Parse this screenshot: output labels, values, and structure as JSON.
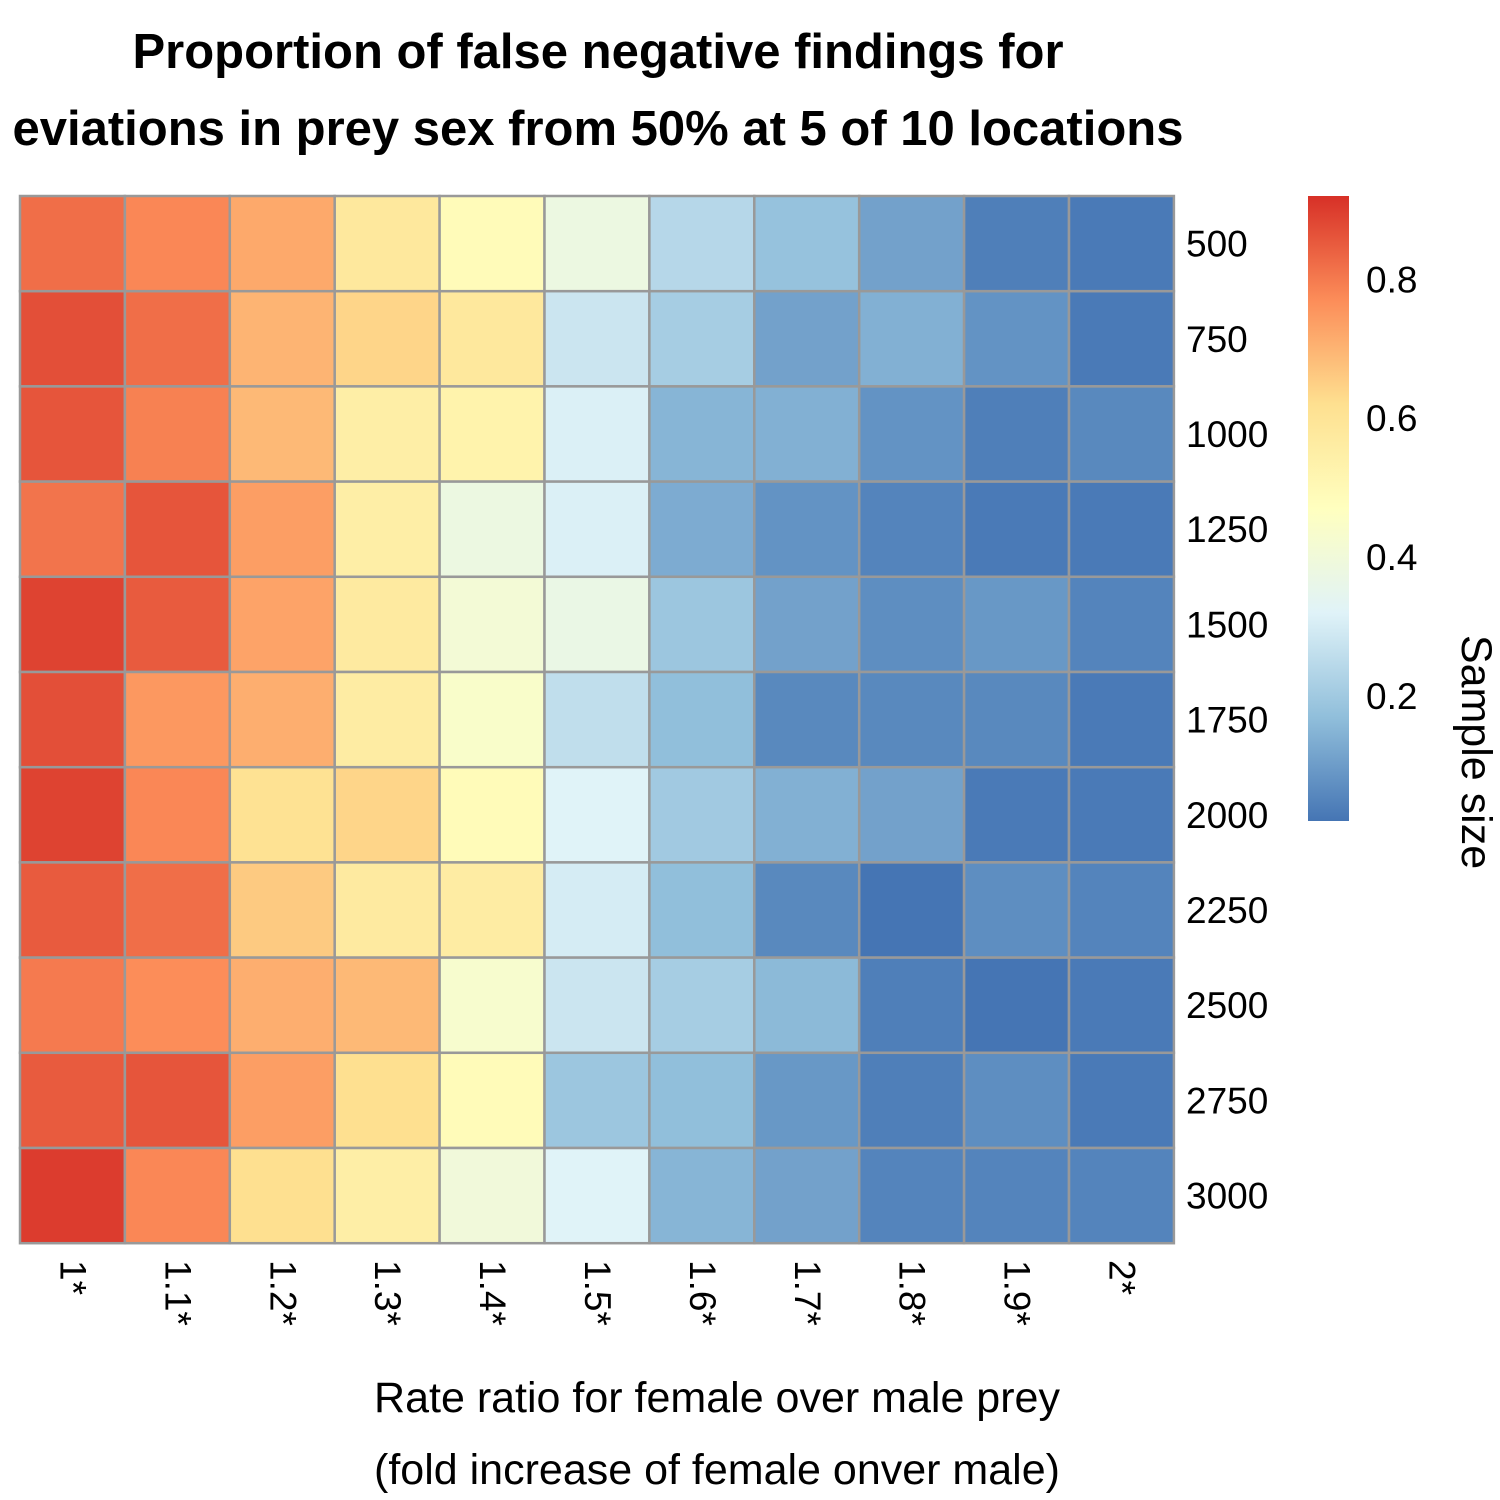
{
  "chart_data": {
    "type": "heatmap",
    "title_lines": [
      "Proportion of false negative findings for",
      "eviations in prey sex from 50% at 5 of 10 locations"
    ],
    "xlabel_lines": [
      "Rate ratio for female over male prey",
      "(fold increase of female onver male)"
    ],
    "colorbar_label": "Sample size",
    "x_categories": [
      "1*",
      "1.1*",
      "1.2*",
      "1.3*",
      "1.4*",
      "1.5*",
      "1.6*",
      "1.7*",
      "1.8*",
      "1.9*",
      "2*"
    ],
    "y_categories": [
      "500",
      "750",
      "1000",
      "1250",
      "1500",
      "1750",
      "2000",
      "2250",
      "2500",
      "2750",
      "3000"
    ],
    "values": [
      [
        0.82,
        0.78,
        0.72,
        0.58,
        0.49,
        0.38,
        0.24,
        0.18,
        0.11,
        0.04,
        0.03
      ],
      [
        0.87,
        0.82,
        0.7,
        0.64,
        0.58,
        0.28,
        0.21,
        0.11,
        0.14,
        0.08,
        0.03
      ],
      [
        0.86,
        0.79,
        0.69,
        0.55,
        0.53,
        0.31,
        0.15,
        0.14,
        0.08,
        0.04,
        0.06
      ],
      [
        0.81,
        0.86,
        0.74,
        0.55,
        0.38,
        0.31,
        0.13,
        0.08,
        0.05,
        0.03,
        0.03
      ],
      [
        0.89,
        0.85,
        0.73,
        0.57,
        0.41,
        0.37,
        0.19,
        0.11,
        0.07,
        0.09,
        0.05
      ],
      [
        0.87,
        0.75,
        0.71,
        0.56,
        0.44,
        0.26,
        0.17,
        0.06,
        0.06,
        0.06,
        0.03
      ],
      [
        0.89,
        0.78,
        0.61,
        0.64,
        0.49,
        0.32,
        0.2,
        0.14,
        0.11,
        0.03,
        0.03
      ],
      [
        0.85,
        0.82,
        0.66,
        0.57,
        0.56,
        0.3,
        0.17,
        0.06,
        0.02,
        0.07,
        0.05
      ],
      [
        0.8,
        0.77,
        0.71,
        0.69,
        0.43,
        0.28,
        0.21,
        0.16,
        0.04,
        0.02,
        0.03
      ],
      [
        0.85,
        0.86,
        0.74,
        0.62,
        0.49,
        0.19,
        0.17,
        0.09,
        0.04,
        0.07,
        0.03
      ],
      [
        0.9,
        0.78,
        0.62,
        0.55,
        0.4,
        0.32,
        0.15,
        0.11,
        0.05,
        0.05,
        0.05
      ]
    ],
    "colorbar_ticks": [
      "0.2",
      "0.4",
      "0.6",
      "0.8"
    ],
    "colorbar_tick_values": [
      0.2,
      0.4,
      0.6,
      0.8
    ],
    "value_range": [
      0.02,
      0.92
    ],
    "palette": [
      "#4575b4",
      "#91bfdb",
      "#e0f3f8",
      "#ffffbf",
      "#fee090",
      "#fc8d59",
      "#d73027"
    ],
    "grid_color": "#999999",
    "colorbar_position": "right"
  }
}
